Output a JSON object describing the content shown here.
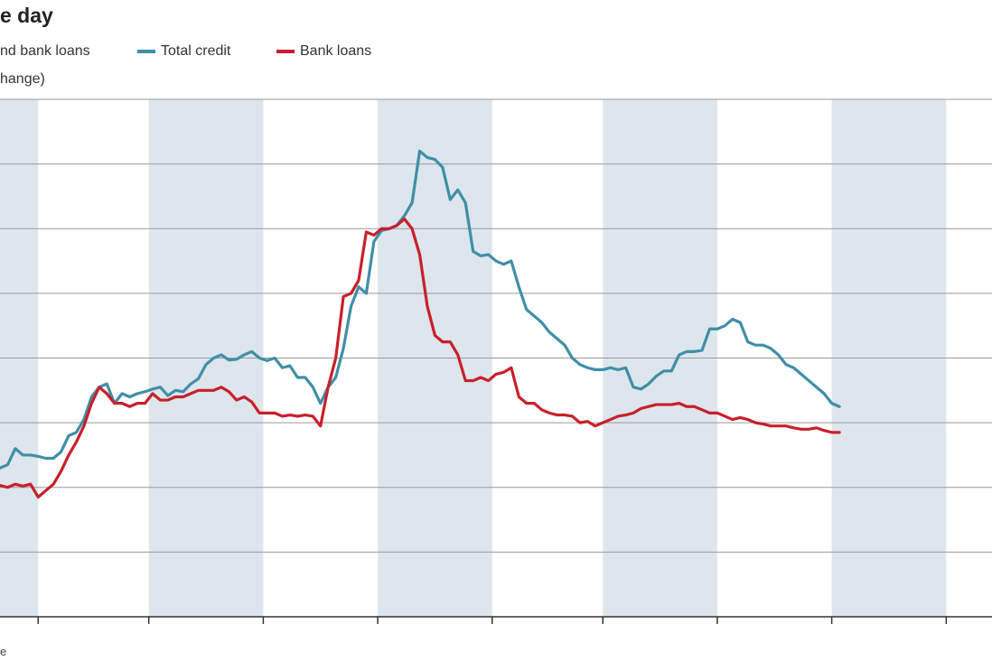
{
  "header": {
    "title": "e day",
    "subtitle_line1": "nd bank loans",
    "subtitle_line2": "hange)"
  },
  "legend": {
    "total_label": "Total credit",
    "bank_label": "Bank loans"
  },
  "source_text": "e",
  "colors": {
    "total_credit": "#3f8fa8",
    "bank_loans": "#c8202a",
    "band": "#dde6ed",
    "grid": "#9a9a9a"
  },
  "chart_data": {
    "type": "line",
    "title": "",
    "xlabel": "",
    "ylabel": "",
    "ylim": [
      0,
      8
    ],
    "grid": true,
    "legend": "top",
    "x_range": [
      0,
      130
    ],
    "shaded_bands": [
      [
        -5,
        5
      ],
      [
        19.5,
        34.5
      ],
      [
        49.5,
        64.5
      ],
      [
        79,
        94
      ],
      [
        109,
        124
      ]
    ],
    "x_ticks": [
      5,
      19.5,
      34.5,
      49.5,
      64.5,
      79,
      94,
      109,
      124
    ],
    "series": [
      {
        "name": "Total credit",
        "values": [
          2.3,
          2.35,
          2.6,
          2.5,
          2.5,
          2.48,
          2.45,
          2.45,
          2.55,
          2.8,
          2.85,
          3.05,
          3.4,
          3.55,
          3.6,
          3.3,
          3.45,
          3.4,
          3.45,
          3.48,
          3.52,
          3.55,
          3.42,
          3.5,
          3.48,
          3.6,
          3.68,
          3.9,
          4.0,
          4.05,
          3.97,
          3.98,
          4.05,
          4.1,
          4.0,
          3.96,
          4.0,
          3.85,
          3.88,
          3.7,
          3.7,
          3.55,
          3.3,
          3.55,
          3.7,
          4.15,
          4.8,
          5.1,
          5.0,
          5.8,
          5.97,
          6.0,
          6.05,
          6.2,
          6.4,
          7.2,
          7.1,
          7.07,
          6.95,
          6.45,
          6.6,
          6.4,
          5.65,
          5.58,
          5.6,
          5.5,
          5.45,
          5.5,
          5.1,
          4.75,
          4.65,
          4.55,
          4.4,
          4.3,
          4.2,
          4.0,
          3.9,
          3.85,
          3.82,
          3.82,
          3.85,
          3.82,
          3.85,
          3.55,
          3.52,
          3.6,
          3.72,
          3.8,
          3.8,
          4.05,
          4.1,
          4.1,
          4.12,
          4.45,
          4.45,
          4.5,
          4.6,
          4.55,
          4.25,
          4.2,
          4.2,
          4.15,
          4.05,
          3.9,
          3.85,
          3.75,
          3.65,
          3.55,
          3.45,
          3.3,
          3.25
        ]
      },
      {
        "name": "Bank loans",
        "values": [
          2.03,
          2.0,
          2.05,
          2.02,
          2.05,
          1.85,
          1.95,
          2.05,
          2.25,
          2.5,
          2.7,
          2.95,
          3.3,
          3.55,
          3.45,
          3.3,
          3.3,
          3.25,
          3.3,
          3.3,
          3.45,
          3.35,
          3.35,
          3.4,
          3.4,
          3.45,
          3.5,
          3.5,
          3.5,
          3.55,
          3.48,
          3.35,
          3.4,
          3.32,
          3.15,
          3.15,
          3.15,
          3.1,
          3.12,
          3.1,
          3.12,
          3.1,
          2.95,
          3.55,
          4.0,
          4.95,
          5.0,
          5.2,
          5.95,
          5.9,
          6.0,
          6.0,
          6.05,
          6.15,
          6.0,
          5.6,
          4.8,
          4.35,
          4.25,
          4.25,
          4.05,
          3.65,
          3.65,
          3.7,
          3.65,
          3.75,
          3.78,
          3.85,
          3.4,
          3.3,
          3.3,
          3.2,
          3.15,
          3.12,
          3.12,
          3.1,
          3.0,
          3.02,
          2.95,
          3.0,
          3.05,
          3.1,
          3.12,
          3.15,
          3.22,
          3.25,
          3.28,
          3.28,
          3.28,
          3.3,
          3.25,
          3.25,
          3.2,
          3.15,
          3.15,
          3.1,
          3.05,
          3.08,
          3.05,
          3.0,
          2.98,
          2.95,
          2.95,
          2.95,
          2.92,
          2.9,
          2.9,
          2.92,
          2.88,
          2.85,
          2.85
        ]
      }
    ]
  }
}
